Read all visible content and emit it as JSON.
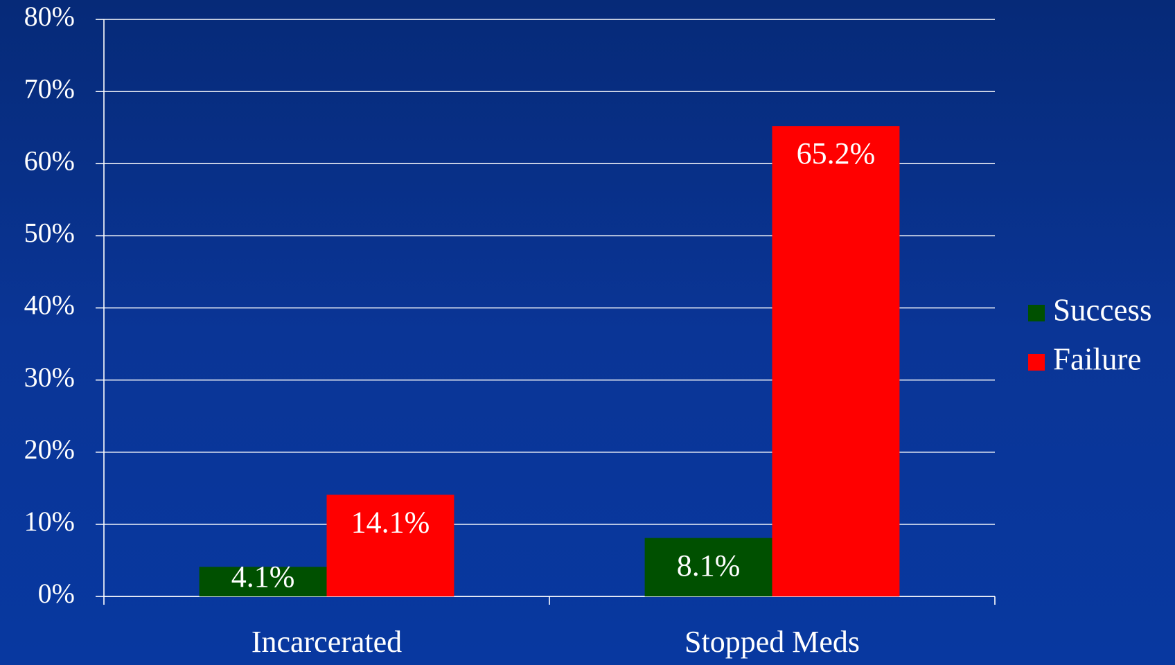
{
  "chart_data": {
    "type": "bar",
    "categories": [
      "Incarcerated",
      "Stopped Meds"
    ],
    "series": [
      {
        "name": "Success",
        "color": "#005000",
        "values": [
          4.1,
          8.1
        ],
        "value_labels": [
          "4.1%",
          "8.1%"
        ]
      },
      {
        "name": "Failure",
        "color": "#ff0000",
        "values": [
          14.1,
          65.2
        ],
        "value_labels": [
          "14.1%",
          "65.2%"
        ]
      }
    ],
    "ylim": [
      0,
      80
    ],
    "yticks": [
      {
        "value": 0,
        "label": "0%"
      },
      {
        "value": 10,
        "label": "10%"
      },
      {
        "value": 20,
        "label": "20%"
      },
      {
        "value": 30,
        "label": "30%"
      },
      {
        "value": 40,
        "label": "40%"
      },
      {
        "value": 50,
        "label": "50%"
      },
      {
        "value": 60,
        "label": "60%"
      },
      {
        "value": 70,
        "label": "70%"
      },
      {
        "value": 80,
        "label": "80%"
      }
    ],
    "grid": true,
    "legend": "right"
  }
}
